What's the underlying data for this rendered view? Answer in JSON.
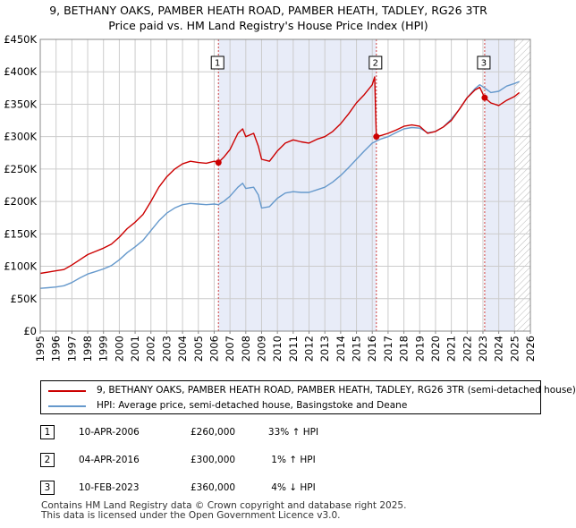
{
  "title_line1": "9, BETHANY OAKS, PAMBER HEATH ROAD, PAMBER HEATH, TADLEY, RG26 3TR",
  "title_line2": "Price paid vs. HM Land Registry's House Price Index (HPI)",
  "colors": {
    "price": "#cc0000",
    "hpi": "#6699cc",
    "shade": "#e8ecf8",
    "grid": "#cccccc"
  },
  "chart_data": {
    "type": "line",
    "xlim": [
      1995,
      2026
    ],
    "ylim": [
      0,
      450000
    ],
    "x_ticks": [
      "1995",
      "1996",
      "1997",
      "1998",
      "1999",
      "2000",
      "2001",
      "2002",
      "2003",
      "2004",
      "2005",
      "2006",
      "2007",
      "2008",
      "2009",
      "2010",
      "2011",
      "2012",
      "2013",
      "2014",
      "2015",
      "2016",
      "2017",
      "2018",
      "2019",
      "2020",
      "2021",
      "2022",
      "2023",
      "2024",
      "2025",
      "2026"
    ],
    "y_ticks": [
      {
        "value": 0,
        "label": "£0"
      },
      {
        "value": 50000,
        "label": "£50K"
      },
      {
        "value": 100000,
        "label": "£100K"
      },
      {
        "value": 150000,
        "label": "£150K"
      },
      {
        "value": 200000,
        "label": "£200K"
      },
      {
        "value": 250000,
        "label": "£250K"
      },
      {
        "value": 300000,
        "label": "£300K"
      },
      {
        "value": 350000,
        "label": "£350K"
      },
      {
        "value": 400000,
        "label": "£400K"
      },
      {
        "value": 450000,
        "label": "£450K"
      }
    ],
    "shaded_ranges": [
      [
        2006.27,
        2016.26
      ],
      [
        2023.11,
        2025.0
      ]
    ],
    "hatch_from": 2025.0,
    "series": [
      {
        "name": "9, BETHANY OAKS, PAMBER HEATH ROAD, PAMBER HEATH, TADLEY, RG26 3TR (semi-detached house)",
        "color": "#cc0000",
        "points": [
          [
            1995,
            89000
          ],
          [
            1995.5,
            91000
          ],
          [
            1996,
            93000
          ],
          [
            1996.5,
            95000
          ],
          [
            1997,
            102000
          ],
          [
            1997.5,
            110000
          ],
          [
            1998,
            118000
          ],
          [
            1998.5,
            123000
          ],
          [
            1999,
            128000
          ],
          [
            1999.5,
            134000
          ],
          [
            2000,
            145000
          ],
          [
            2000.5,
            158000
          ],
          [
            2001,
            168000
          ],
          [
            2001.5,
            180000
          ],
          [
            2002,
            200000
          ],
          [
            2002.5,
            222000
          ],
          [
            2003,
            238000
          ],
          [
            2003.5,
            250000
          ],
          [
            2004,
            258000
          ],
          [
            2004.5,
            262000
          ],
          [
            2005,
            260000
          ],
          [
            2005.5,
            259000
          ],
          [
            2006,
            262000
          ],
          [
            2006.27,
            260000
          ],
          [
            2006.6,
            268000
          ],
          [
            2007,
            280000
          ],
          [
            2007.5,
            305000
          ],
          [
            2007.8,
            312000
          ],
          [
            2008,
            300000
          ],
          [
            2008.5,
            305000
          ],
          [
            2008.8,
            285000
          ],
          [
            2009,
            265000
          ],
          [
            2009.5,
            262000
          ],
          [
            2010,
            278000
          ],
          [
            2010.5,
            290000
          ],
          [
            2011,
            295000
          ],
          [
            2011.5,
            292000
          ],
          [
            2012,
            290000
          ],
          [
            2012.5,
            296000
          ],
          [
            2013,
            300000
          ],
          [
            2013.5,
            308000
          ],
          [
            2014,
            320000
          ],
          [
            2014.5,
            335000
          ],
          [
            2015,
            352000
          ],
          [
            2015.5,
            365000
          ],
          [
            2016,
            380000
          ],
          [
            2016.15,
            392000
          ],
          [
            2016.22,
            330000
          ],
          [
            2016.26,
            300000
          ],
          [
            2016.6,
            302000
          ],
          [
            2017,
            305000
          ],
          [
            2017.5,
            310000
          ],
          [
            2018,
            316000
          ],
          [
            2018.5,
            318000
          ],
          [
            2019,
            316000
          ],
          [
            2019.5,
            305000
          ],
          [
            2020,
            308000
          ],
          [
            2020.5,
            315000
          ],
          [
            2021,
            325000
          ],
          [
            2021.5,
            342000
          ],
          [
            2022,
            360000
          ],
          [
            2022.5,
            372000
          ],
          [
            2022.8,
            376000
          ],
          [
            2023.11,
            360000
          ],
          [
            2023.5,
            352000
          ],
          [
            2024,
            348000
          ],
          [
            2024.5,
            356000
          ],
          [
            2025,
            362000
          ],
          [
            2025.3,
            368000
          ]
        ]
      },
      {
        "name": "HPI: Average price, semi-detached house, Basingstoke and Deane",
        "color": "#6699cc",
        "points": [
          [
            1995,
            66000
          ],
          [
            1995.5,
            67000
          ],
          [
            1996,
            68000
          ],
          [
            1996.5,
            70000
          ],
          [
            1997,
            75000
          ],
          [
            1997.5,
            82000
          ],
          [
            1998,
            88000
          ],
          [
            1998.5,
            92000
          ],
          [
            1999,
            96000
          ],
          [
            1999.5,
            101000
          ],
          [
            2000,
            110000
          ],
          [
            2000.5,
            121000
          ],
          [
            2001,
            130000
          ],
          [
            2001.5,
            140000
          ],
          [
            2002,
            155000
          ],
          [
            2002.5,
            170000
          ],
          [
            2003,
            182000
          ],
          [
            2003.5,
            190000
          ],
          [
            2004,
            195000
          ],
          [
            2004.5,
            197000
          ],
          [
            2005,
            196000
          ],
          [
            2005.5,
            195000
          ],
          [
            2006,
            196000
          ],
          [
            2006.27,
            195000
          ],
          [
            2006.6,
            200000
          ],
          [
            2007,
            208000
          ],
          [
            2007.5,
            222000
          ],
          [
            2007.8,
            228000
          ],
          [
            2008,
            220000
          ],
          [
            2008.5,
            222000
          ],
          [
            2008.8,
            210000
          ],
          [
            2009,
            190000
          ],
          [
            2009.5,
            192000
          ],
          [
            2010,
            205000
          ],
          [
            2010.5,
            213000
          ],
          [
            2011,
            215000
          ],
          [
            2011.5,
            214000
          ],
          [
            2012,
            214000
          ],
          [
            2012.5,
            218000
          ],
          [
            2013,
            222000
          ],
          [
            2013.5,
            230000
          ],
          [
            2014,
            240000
          ],
          [
            2014.5,
            252000
          ],
          [
            2015,
            265000
          ],
          [
            2015.5,
            278000
          ],
          [
            2016,
            290000
          ],
          [
            2016.5,
            296000
          ],
          [
            2017,
            300000
          ],
          [
            2017.5,
            306000
          ],
          [
            2018,
            312000
          ],
          [
            2018.5,
            314000
          ],
          [
            2019,
            313000
          ],
          [
            2019.5,
            306000
          ],
          [
            2020,
            308000
          ],
          [
            2020.5,
            315000
          ],
          [
            2021,
            327000
          ],
          [
            2021.5,
            342000
          ],
          [
            2022,
            360000
          ],
          [
            2022.5,
            374000
          ],
          [
            2022.8,
            380000
          ],
          [
            2023.11,
            375000
          ],
          [
            2023.5,
            368000
          ],
          [
            2024,
            370000
          ],
          [
            2024.5,
            378000
          ],
          [
            2025,
            382000
          ],
          [
            2025.3,
            385000
          ]
        ]
      }
    ],
    "sales": [
      {
        "n": "1",
        "x": 2006.27,
        "y": 260000
      },
      {
        "n": "2",
        "x": 2016.26,
        "y": 300000
      },
      {
        "n": "3",
        "x": 2023.11,
        "y": 360000
      }
    ]
  },
  "legend": [
    {
      "label": "9, BETHANY OAKS, PAMBER HEATH ROAD, PAMBER HEATH, TADLEY, RG26 3TR (semi-detached house)",
      "color": "#cc0000"
    },
    {
      "label": "HPI: Average price, semi-detached house, Basingstoke and Deane",
      "color": "#6699cc"
    }
  ],
  "sales_table": [
    {
      "n": "1",
      "date": "10-APR-2006",
      "price": "£260,000",
      "hpi": "33% ↑ HPI"
    },
    {
      "n": "2",
      "date": "04-APR-2016",
      "price": "£300,000",
      "hpi": "1% ↑ HPI"
    },
    {
      "n": "3",
      "date": "10-FEB-2023",
      "price": "£360,000",
      "hpi": "4% ↓ HPI"
    }
  ],
  "footer_line1": "Contains HM Land Registry data © Crown copyright and database right 2025.",
  "footer_line2": "This data is licensed under the Open Government Licence v3.0."
}
